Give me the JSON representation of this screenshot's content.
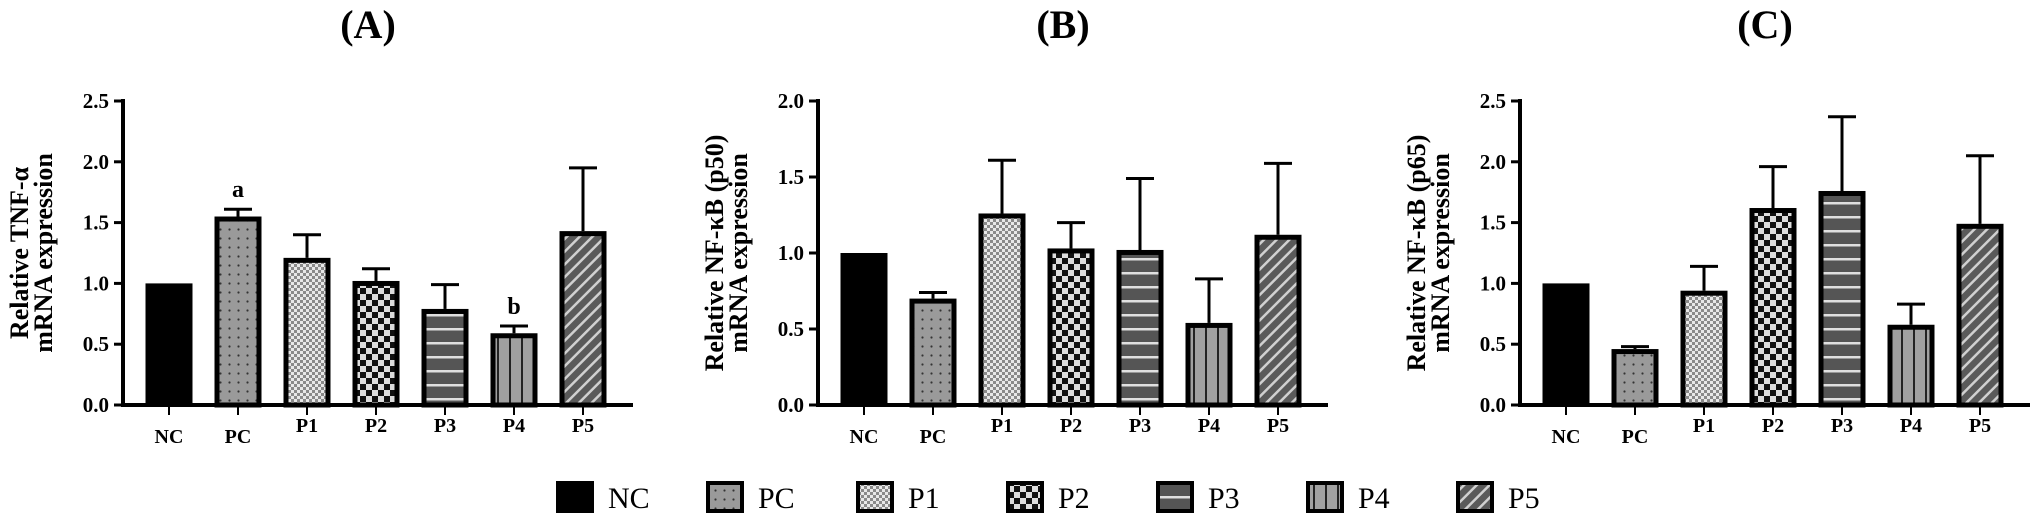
{
  "chart_data": [
    {
      "type": "bar",
      "title": "(A)",
      "ylabel": [
        "Relative TNF-α",
        "mRNA expression"
      ],
      "categories": [
        "NC",
        "PC",
        "P1",
        "P2",
        "P3",
        "P4",
        "P5"
      ],
      "values": [
        1.0,
        1.55,
        1.21,
        1.02,
        0.79,
        0.59,
        1.43
      ],
      "error_upper": [
        0,
        0.06,
        0.19,
        0.1,
        0.2,
        0.06,
        0.52
      ],
      "annotations": [
        "",
        "a",
        "",
        "",
        "",
        "b",
        ""
      ],
      "ylim": [
        0,
        2.5
      ],
      "yticks": [
        "0.0",
        "0.5",
        "1.0",
        "1.5",
        "2.0",
        "2.5"
      ]
    },
    {
      "type": "bar",
      "title": "(B)",
      "ylabel": [
        "Relative NF-κB (p50)",
        "mRNA expression"
      ],
      "categories": [
        "NC",
        "PC",
        "P1",
        "P2",
        "P3",
        "P4",
        "P5"
      ],
      "values": [
        1.0,
        0.7,
        1.26,
        1.03,
        1.02,
        0.54,
        1.12
      ],
      "error_upper": [
        0,
        0.04,
        0.35,
        0.17,
        0.47,
        0.29,
        0.47
      ],
      "annotations": [
        "",
        "",
        "",
        "",
        "",
        "",
        ""
      ],
      "ylim": [
        0,
        2.0
      ],
      "yticks": [
        "0.0",
        "0.5",
        "1.0",
        "1.5",
        "2.0"
      ]
    },
    {
      "type": "bar",
      "title": "(C)",
      "ylabel": [
        "Relative NF-κB (p65)",
        "mRNA expression"
      ],
      "categories": [
        "NC",
        "PC",
        "P1",
        "P2",
        "P3",
        "P4",
        "P5"
      ],
      "values": [
        1.0,
        0.46,
        0.94,
        1.62,
        1.76,
        0.66,
        1.49
      ],
      "error_upper": [
        0,
        0.02,
        0.2,
        0.34,
        0.61,
        0.17,
        0.56
      ],
      "annotations": [
        "",
        "",
        "",
        "",
        "",
        "",
        ""
      ],
      "ylim": [
        0,
        2.5
      ],
      "yticks": [
        "0.0",
        "0.5",
        "1.0",
        "1.5",
        "2.0",
        "2.5"
      ]
    }
  ],
  "legend": {
    "placement": "bottom-center",
    "entries": [
      "NC",
      "PC",
      "P1",
      "P2",
      "P3",
      "P4",
      "P5"
    ]
  },
  "colors": {
    "NC": "#000000",
    "PC": "#9a9a9a",
    "P1": "#d8d8d8",
    "P2": "#222222",
    "P3": "#555555",
    "P4": "#9a9a9a",
    "P5": "#5a5a5a"
  }
}
